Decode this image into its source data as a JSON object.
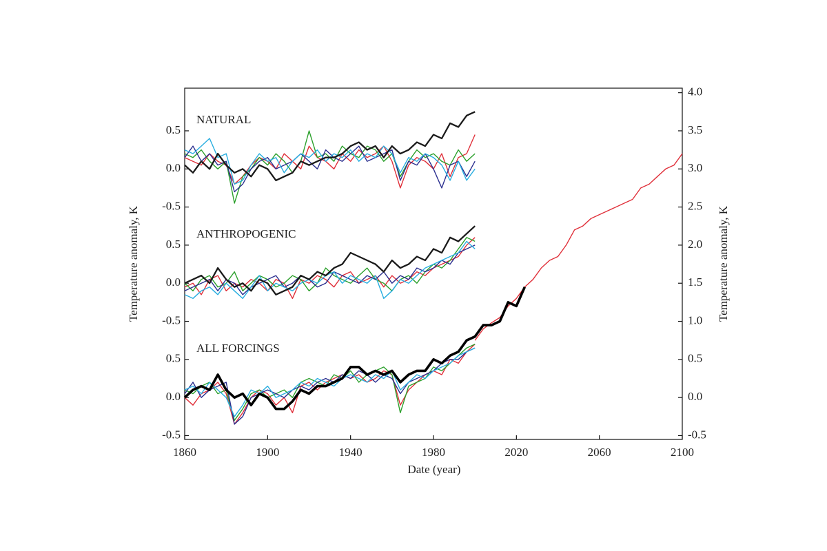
{
  "chart_data": {
    "type": "line",
    "xlabel": "Date (year)",
    "ylabel": "Temperature anomaly, K",
    "y2label": "Temperature anomaly, K",
    "xlim": [
      1860,
      2100
    ],
    "xticks": [
      1860,
      1900,
      1940,
      1980,
      2020,
      2060,
      2100
    ],
    "y2lim": [
      -0.55,
      4.06
    ],
    "y2ticks": [
      {
        "value": 4,
        "label": "4.0"
      },
      3.5,
      {
        "value": 3,
        "label": "3.0"
      },
      2.5,
      {
        "value": 2,
        "label": "2.0"
      },
      1.5,
      {
        "value": 1,
        "label": "1.0"
      },
      0.5,
      {
        "value": 0,
        "label": "0.0"
      },
      -0.5
    ],
    "panels": [
      {
        "label": "NATURAL",
        "baseline": 3.0,
        "yticks": [
          0.5,
          {
            "value": 0,
            "label": "0.0"
          },
          -0.5
        ],
        "x": [
          1860,
          1864,
          1868,
          1872,
          1876,
          1880,
          1884,
          1888,
          1892,
          1896,
          1900,
          1904,
          1908,
          1912,
          1916,
          1920,
          1924,
          1928,
          1932,
          1936,
          1940,
          1944,
          1948,
          1952,
          1956,
          1960,
          1964,
          1968,
          1972,
          1976,
          1980,
          1984,
          1988,
          1992,
          1996,
          2000
        ],
        "series": [
          {
            "color": "#e0303a",
            "values": [
              0.15,
              0.1,
              0.05,
              0.2,
              0.1,
              0.05,
              -0.2,
              -0.1,
              0.05,
              0.15,
              0.1,
              0.0,
              0.2,
              0.1,
              0.0,
              0.3,
              0.15,
              0.1,
              0.0,
              0.2,
              0.1,
              0.25,
              0.15,
              0.2,
              0.3,
              0.1,
              -0.25,
              0.05,
              0.15,
              0.1,
              0.0,
              0.2,
              -0.1,
              0.15,
              0.2,
              0.45
            ]
          },
          {
            "color": "#2ca02c",
            "values": [
              0.2,
              0.15,
              0.25,
              0.1,
              0.0,
              0.1,
              -0.45,
              -0.1,
              0.0,
              0.15,
              0.05,
              0.2,
              0.1,
              -0.05,
              0.1,
              0.5,
              0.15,
              0.2,
              0.1,
              0.3,
              0.2,
              0.15,
              0.3,
              0.25,
              0.1,
              0.2,
              -0.1,
              0.1,
              0.25,
              0.15,
              0.2,
              0.1,
              0.05,
              0.25,
              0.1,
              0.2
            ]
          },
          {
            "color": "#2b2f8f",
            "values": [
              0.15,
              0.3,
              0.1,
              0.2,
              0.05,
              0.1,
              -0.3,
              -0.2,
              0.0,
              0.1,
              0.15,
              0.0,
              0.05,
              0.1,
              0.2,
              0.1,
              0.0,
              0.25,
              0.15,
              0.1,
              0.2,
              0.3,
              0.1,
              0.15,
              0.2,
              0.25,
              -0.15,
              0.1,
              0.05,
              0.2,
              0.0,
              -0.25,
              0.05,
              0.1,
              -0.1,
              0.1
            ]
          },
          {
            "color": "#29aee0",
            "values": [
              0.25,
              0.2,
              0.3,
              0.4,
              0.15,
              0.2,
              -0.2,
              -0.15,
              0.05,
              0.2,
              0.1,
              0.15,
              -0.05,
              0.1,
              0.2,
              0.15,
              0.25,
              0.1,
              0.2,
              0.15,
              0.25,
              0.1,
              0.2,
              0.15,
              0.3,
              0.2,
              -0.05,
              0.15,
              0.1,
              0.2,
              0.15,
              0.05,
              -0.15,
              0.1,
              -0.15,
              0.0
            ]
          },
          {
            "color": "#1a1a1a",
            "values": [
              0.05,
              -0.05,
              0.1,
              0.0,
              0.2,
              0.05,
              -0.05,
              0.0,
              -0.1,
              0.05,
              0.0,
              -0.15,
              -0.1,
              -0.05,
              0.1,
              0.05,
              0.1,
              0.15,
              0.15,
              0.2,
              0.3,
              0.35,
              0.25,
              0.3,
              0.15,
              0.3,
              0.2,
              0.25,
              0.35,
              0.3,
              0.45,
              0.4,
              0.6,
              0.55,
              0.7,
              0.75
            ]
          }
        ]
      },
      {
        "label": "ANTHROPOGENIC",
        "baseline": 1.5,
        "yticks": [
          0.5,
          {
            "value": 0,
            "label": "0.0"
          },
          -0.5
        ],
        "x": [
          1860,
          1864,
          1868,
          1872,
          1876,
          1880,
          1884,
          1888,
          1892,
          1896,
          1900,
          1904,
          1908,
          1912,
          1916,
          1920,
          1924,
          1928,
          1932,
          1936,
          1940,
          1944,
          1948,
          1952,
          1956,
          1960,
          1964,
          1968,
          1972,
          1976,
          1980,
          1984,
          1988,
          1992,
          1996,
          2000
        ],
        "series": [
          {
            "color": "#e0303a",
            "values": [
              -0.05,
              0.0,
              -0.15,
              0.05,
              0.1,
              -0.1,
              0.0,
              -0.05,
              0.05,
              0.0,
              -0.1,
              0.05,
              0.0,
              -0.2,
              0.05,
              0.0,
              0.1,
              0.05,
              -0.05,
              0.1,
              0.15,
              0.0,
              0.05,
              0.1,
              -0.05,
              0.1,
              0.0,
              0.05,
              0.15,
              0.1,
              0.2,
              0.25,
              0.3,
              0.35,
              0.5,
              0.6
            ]
          },
          {
            "color": "#2ca02c",
            "values": [
              0.0,
              -0.1,
              0.05,
              0.1,
              -0.05,
              0.0,
              0.15,
              -0.1,
              0.0,
              0.1,
              0.05,
              -0.05,
              0.0,
              0.1,
              0.05,
              -0.1,
              0.0,
              0.2,
              0.1,
              0.05,
              0.0,
              0.1,
              0.2,
              0.05,
              0.0,
              -0.1,
              0.05,
              0.1,
              0.0,
              0.15,
              0.25,
              0.2,
              0.3,
              0.45,
              0.6,
              0.55
            ]
          },
          {
            "color": "#2b2f8f",
            "values": [
              -0.1,
              -0.05,
              0.0,
              0.05,
              -0.1,
              0.05,
              0.0,
              -0.15,
              -0.05,
              0.0,
              0.05,
              0.1,
              -0.05,
              0.0,
              0.1,
              0.05,
              -0.05,
              0.0,
              0.15,
              0.1,
              0.05,
              0.0,
              0.1,
              0.05,
              0.15,
              0.0,
              0.1,
              0.05,
              0.2,
              0.15,
              0.2,
              0.3,
              0.25,
              0.4,
              0.45,
              0.5
            ]
          },
          {
            "color": "#29aee0",
            "values": [
              -0.15,
              -0.2,
              -0.1,
              -0.05,
              -0.15,
              0.0,
              -0.1,
              -0.2,
              -0.05,
              0.1,
              -0.1,
              0.0,
              -0.05,
              -0.1,
              0.0,
              0.05,
              0.0,
              0.1,
              0.15,
              0.0,
              0.1,
              0.05,
              0.0,
              0.1,
              -0.2,
              -0.1,
              0.05,
              0.0,
              0.1,
              0.2,
              0.25,
              0.3,
              0.35,
              0.4,
              0.55,
              0.45
            ]
          },
          {
            "color": "#1a1a1a",
            "values": [
              0.0,
              0.05,
              0.1,
              0.0,
              0.2,
              0.05,
              -0.05,
              0.0,
              -0.1,
              0.05,
              0.0,
              -0.15,
              -0.1,
              -0.05,
              0.1,
              0.05,
              0.15,
              0.1,
              0.2,
              0.25,
              0.4,
              0.35,
              0.3,
              0.25,
              0.15,
              0.3,
              0.2,
              0.25,
              0.35,
              0.3,
              0.45,
              0.4,
              0.6,
              0.55,
              0.65,
              0.75
            ]
          }
        ]
      },
      {
        "label": "ALL FORCINGS",
        "baseline": 0,
        "yticks": [
          0.5,
          {
            "value": 0,
            "label": "0.0"
          },
          -0.5
        ],
        "x": [
          1860,
          1864,
          1868,
          1872,
          1876,
          1880,
          1884,
          1888,
          1892,
          1896,
          1900,
          1904,
          1908,
          1912,
          1916,
          1920,
          1924,
          1928,
          1932,
          1936,
          1940,
          1944,
          1948,
          1952,
          1956,
          1960,
          1964,
          1968,
          1972,
          1976,
          1980,
          1984,
          1988,
          1992,
          1996,
          2000
        ],
        "series": [
          {
            "color": "#e0303a",
            "values": [
              0.0,
              -0.1,
              0.05,
              0.1,
              0.2,
              0.05,
              -0.35,
              -0.2,
              0.0,
              0.1,
              0.05,
              -0.1,
              0.0,
              -0.2,
              0.15,
              0.2,
              0.1,
              0.2,
              0.25,
              0.3,
              0.25,
              0.3,
              0.2,
              0.25,
              0.35,
              0.3,
              -0.1,
              0.1,
              0.2,
              0.3,
              0.35,
              0.3,
              0.5,
              0.45,
              0.6,
              0.7
            ]
          },
          {
            "color": "#2ca02c",
            "values": [
              0.1,
              0.05,
              0.15,
              0.2,
              0.05,
              0.1,
              -0.3,
              -0.15,
              0.05,
              0.1,
              0.0,
              0.05,
              0.1,
              0.0,
              0.2,
              0.25,
              0.2,
              0.15,
              0.3,
              0.25,
              0.35,
              0.2,
              0.3,
              0.35,
              0.4,
              0.3,
              -0.2,
              0.15,
              0.2,
              0.25,
              0.4,
              0.35,
              0.45,
              0.55,
              0.65,
              0.7
            ]
          },
          {
            "color": "#2b2f8f",
            "values": [
              0.05,
              0.2,
              0.0,
              0.1,
              0.15,
              0.2,
              -0.35,
              -0.25,
              0.0,
              0.05,
              0.1,
              0.05,
              0.0,
              0.1,
              0.15,
              0.1,
              0.2,
              0.25,
              0.2,
              0.3,
              0.25,
              0.35,
              0.3,
              0.2,
              0.3,
              0.25,
              0.05,
              0.2,
              0.25,
              0.3,
              0.35,
              0.45,
              0.5,
              0.5,
              0.6,
              0.65
            ]
          },
          {
            "color": "#29aee0",
            "values": [
              0.1,
              0.15,
              0.05,
              0.2,
              0.1,
              0.0,
              -0.25,
              -0.1,
              0.1,
              0.05,
              0.15,
              0.0,
              0.05,
              0.1,
              0.2,
              0.15,
              0.25,
              0.2,
              0.15,
              0.25,
              0.3,
              0.25,
              0.2,
              0.3,
              0.25,
              0.35,
              0.1,
              0.2,
              0.3,
              0.25,
              0.35,
              0.4,
              0.45,
              0.55,
              0.6,
              0.65
            ]
          },
          {
            "color": "#e0303a",
            "x": [
              2000,
              2004,
              2008,
              2012,
              2016,
              2020,
              2024,
              2028,
              2032,
              2036,
              2040,
              2044,
              2048,
              2052,
              2056,
              2060,
              2064,
              2068,
              2072,
              2076,
              2080,
              2084,
              2088,
              2092,
              2096,
              2100
            ],
            "values": [
              0.75,
              0.9,
              0.98,
              1.05,
              1.2,
              1.3,
              1.45,
              1.55,
              1.7,
              1.8,
              1.85,
              2.0,
              2.2,
              2.25,
              2.35,
              2.4,
              2.45,
              2.5,
              2.55,
              2.6,
              2.75,
              2.8,
              2.9,
              3.0,
              3.05,
              3.2
            ]
          },
          {
            "color": "#000000",
            "x": [
              1860,
              1864,
              1868,
              1872,
              1876,
              1880,
              1884,
              1888,
              1892,
              1896,
              1900,
              1904,
              1908,
              1912,
              1916,
              1920,
              1924,
              1928,
              1932,
              1936,
              1940,
              1944,
              1948,
              1952,
              1956,
              1960,
              1964,
              1968,
              1972,
              1976,
              1980,
              1984,
              1988,
              1992,
              1996,
              2000,
              2004,
              2008,
              2012,
              2016,
              2020,
              2024
            ],
            "values": [
              0.0,
              0.1,
              0.15,
              0.1,
              0.3,
              0.1,
              0.0,
              0.05,
              -0.1,
              0.05,
              0.0,
              -0.15,
              -0.15,
              -0.05,
              0.1,
              0.05,
              0.15,
              0.15,
              0.2,
              0.25,
              0.4,
              0.4,
              0.3,
              0.35,
              0.3,
              0.35,
              0.2,
              0.3,
              0.35,
              0.35,
              0.5,
              0.45,
              0.55,
              0.6,
              0.75,
              0.8,
              0.95,
              0.95,
              1.0,
              1.25,
              1.2,
              1.45
            ]
          }
        ]
      }
    ]
  }
}
